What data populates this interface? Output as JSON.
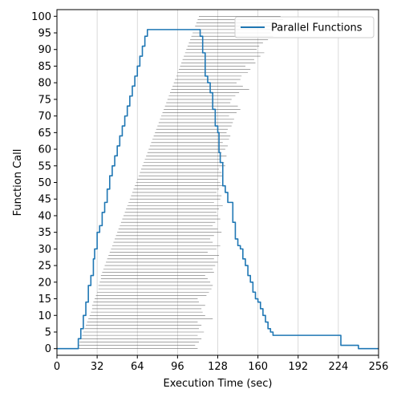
{
  "chart_data": {
    "type": "line",
    "title": "",
    "xlabel": "Execution Time (sec)",
    "ylabel": "Function Call",
    "xlim": [
      0,
      256
    ],
    "ylim": [
      -2,
      102
    ],
    "x_ticks": [
      0,
      32,
      64,
      96,
      128,
      160,
      192,
      224,
      256
    ],
    "y_ticks": [
      0,
      5,
      10,
      15,
      20,
      25,
      30,
      35,
      40,
      45,
      50,
      55,
      60,
      65,
      70,
      75,
      80,
      85,
      90,
      95,
      100
    ],
    "grid": "vertical-major",
    "legend": {
      "position": "top-right",
      "entries": [
        "Parallel Functions"
      ]
    },
    "series": [
      {
        "name": "Parallel Functions",
        "color": "#1f77b4",
        "x": [
          0,
          16,
          17,
          19,
          21,
          23,
          25,
          27,
          29,
          30,
          32,
          34,
          36,
          38,
          40,
          42,
          44,
          46,
          48,
          50,
          52,
          54,
          56,
          58,
          60,
          62,
          64,
          66,
          68,
          70,
          72,
          74,
          76,
          78,
          80,
          82,
          84,
          86,
          88,
          90,
          92,
          94,
          96,
          98,
          100,
          102,
          104,
          106,
          108,
          112,
          113,
          114,
          116,
          118,
          120,
          122,
          124,
          126,
          128,
          129,
          130,
          132,
          134,
          136,
          138,
          140,
          142,
          144,
          146,
          148,
          150,
          152,
          154,
          156,
          158,
          160,
          162,
          164,
          166,
          168,
          170,
          172,
          174,
          176,
          178,
          180,
          182,
          184,
          190,
          200,
          210,
          220,
          224,
          226,
          235,
          240,
          256
        ],
        "values": [
          0,
          0,
          3,
          6,
          10,
          14,
          19,
          22,
          27,
          30,
          35,
          37,
          41,
          44,
          48,
          52,
          55,
          58,
          61,
          64,
          67,
          70,
          73,
          76,
          79,
          82,
          85,
          88,
          91,
          94,
          96,
          96,
          96,
          96,
          96,
          96,
          96,
          96,
          96,
          96,
          96,
          96,
          96,
          96,
          96,
          96,
          96,
          96,
          96,
          96,
          96,
          94,
          89,
          82,
          80,
          77,
          72,
          67,
          65,
          59,
          56,
          49,
          47,
          44,
          44,
          38,
          33,
          31,
          30,
          27,
          25,
          22,
          20,
          17,
          15,
          14,
          12,
          10,
          8,
          6,
          5,
          4,
          4,
          4,
          4,
          4,
          4,
          4,
          4,
          4,
          4,
          4,
          4,
          1,
          1,
          0,
          0
        ]
      }
    ],
    "range_lines": {
      "color": "#555555",
      "starts": [
        15,
        17,
        18,
        19,
        20,
        21,
        22,
        23,
        24,
        25,
        26,
        27,
        28,
        28,
        29,
        30,
        31,
        32,
        33,
        33,
        34,
        35,
        35,
        36,
        37,
        38,
        39,
        40,
        41,
        42,
        43,
        44,
        45,
        46,
        47,
        48,
        49,
        50,
        51,
        52,
        53,
        54,
        55,
        56,
        57,
        58,
        59,
        60,
        61,
        62,
        63,
        64,
        65,
        66,
        67,
        68,
        69,
        70,
        71,
        72,
        73,
        74,
        75,
        76,
        77,
        78,
        79,
        80,
        81,
        82,
        83,
        84,
        85,
        86,
        87,
        88,
        89,
        90,
        91,
        92,
        93,
        94,
        95,
        96,
        97,
        98,
        99,
        100,
        101,
        102,
        103,
        104,
        105,
        106,
        107,
        108,
        109,
        110,
        111,
        112,
        113
      ],
      "ends": [
        112,
        110,
        113,
        115,
        112,
        117,
        113,
        115,
        112,
        124,
        118,
        116,
        115,
        118,
        113,
        112,
        119,
        121,
        123,
        124,
        122,
        120,
        118,
        125,
        124,
        126,
        128,
        125,
        129,
        120,
        127,
        130,
        124,
        122,
        125,
        131,
        128,
        124,
        126,
        130,
        128,
        127,
        129,
        132,
        125,
        130,
        131,
        127,
        129,
        133,
        130,
        128,
        132,
        131,
        129,
        134,
        133,
        130,
        135,
        131,
        134,
        136,
        132,
        137,
        138,
        135,
        136,
        139,
        140,
        141,
        137,
        143,
        146,
        144,
        138,
        139,
        142,
        145,
        153,
        148,
        143,
        146,
        147,
        152,
        154,
        150,
        158,
        157,
        162,
        165,
        159,
        161,
        164,
        168,
        172,
        170,
        177,
        175,
        173,
        180,
        178
      ]
    }
  }
}
